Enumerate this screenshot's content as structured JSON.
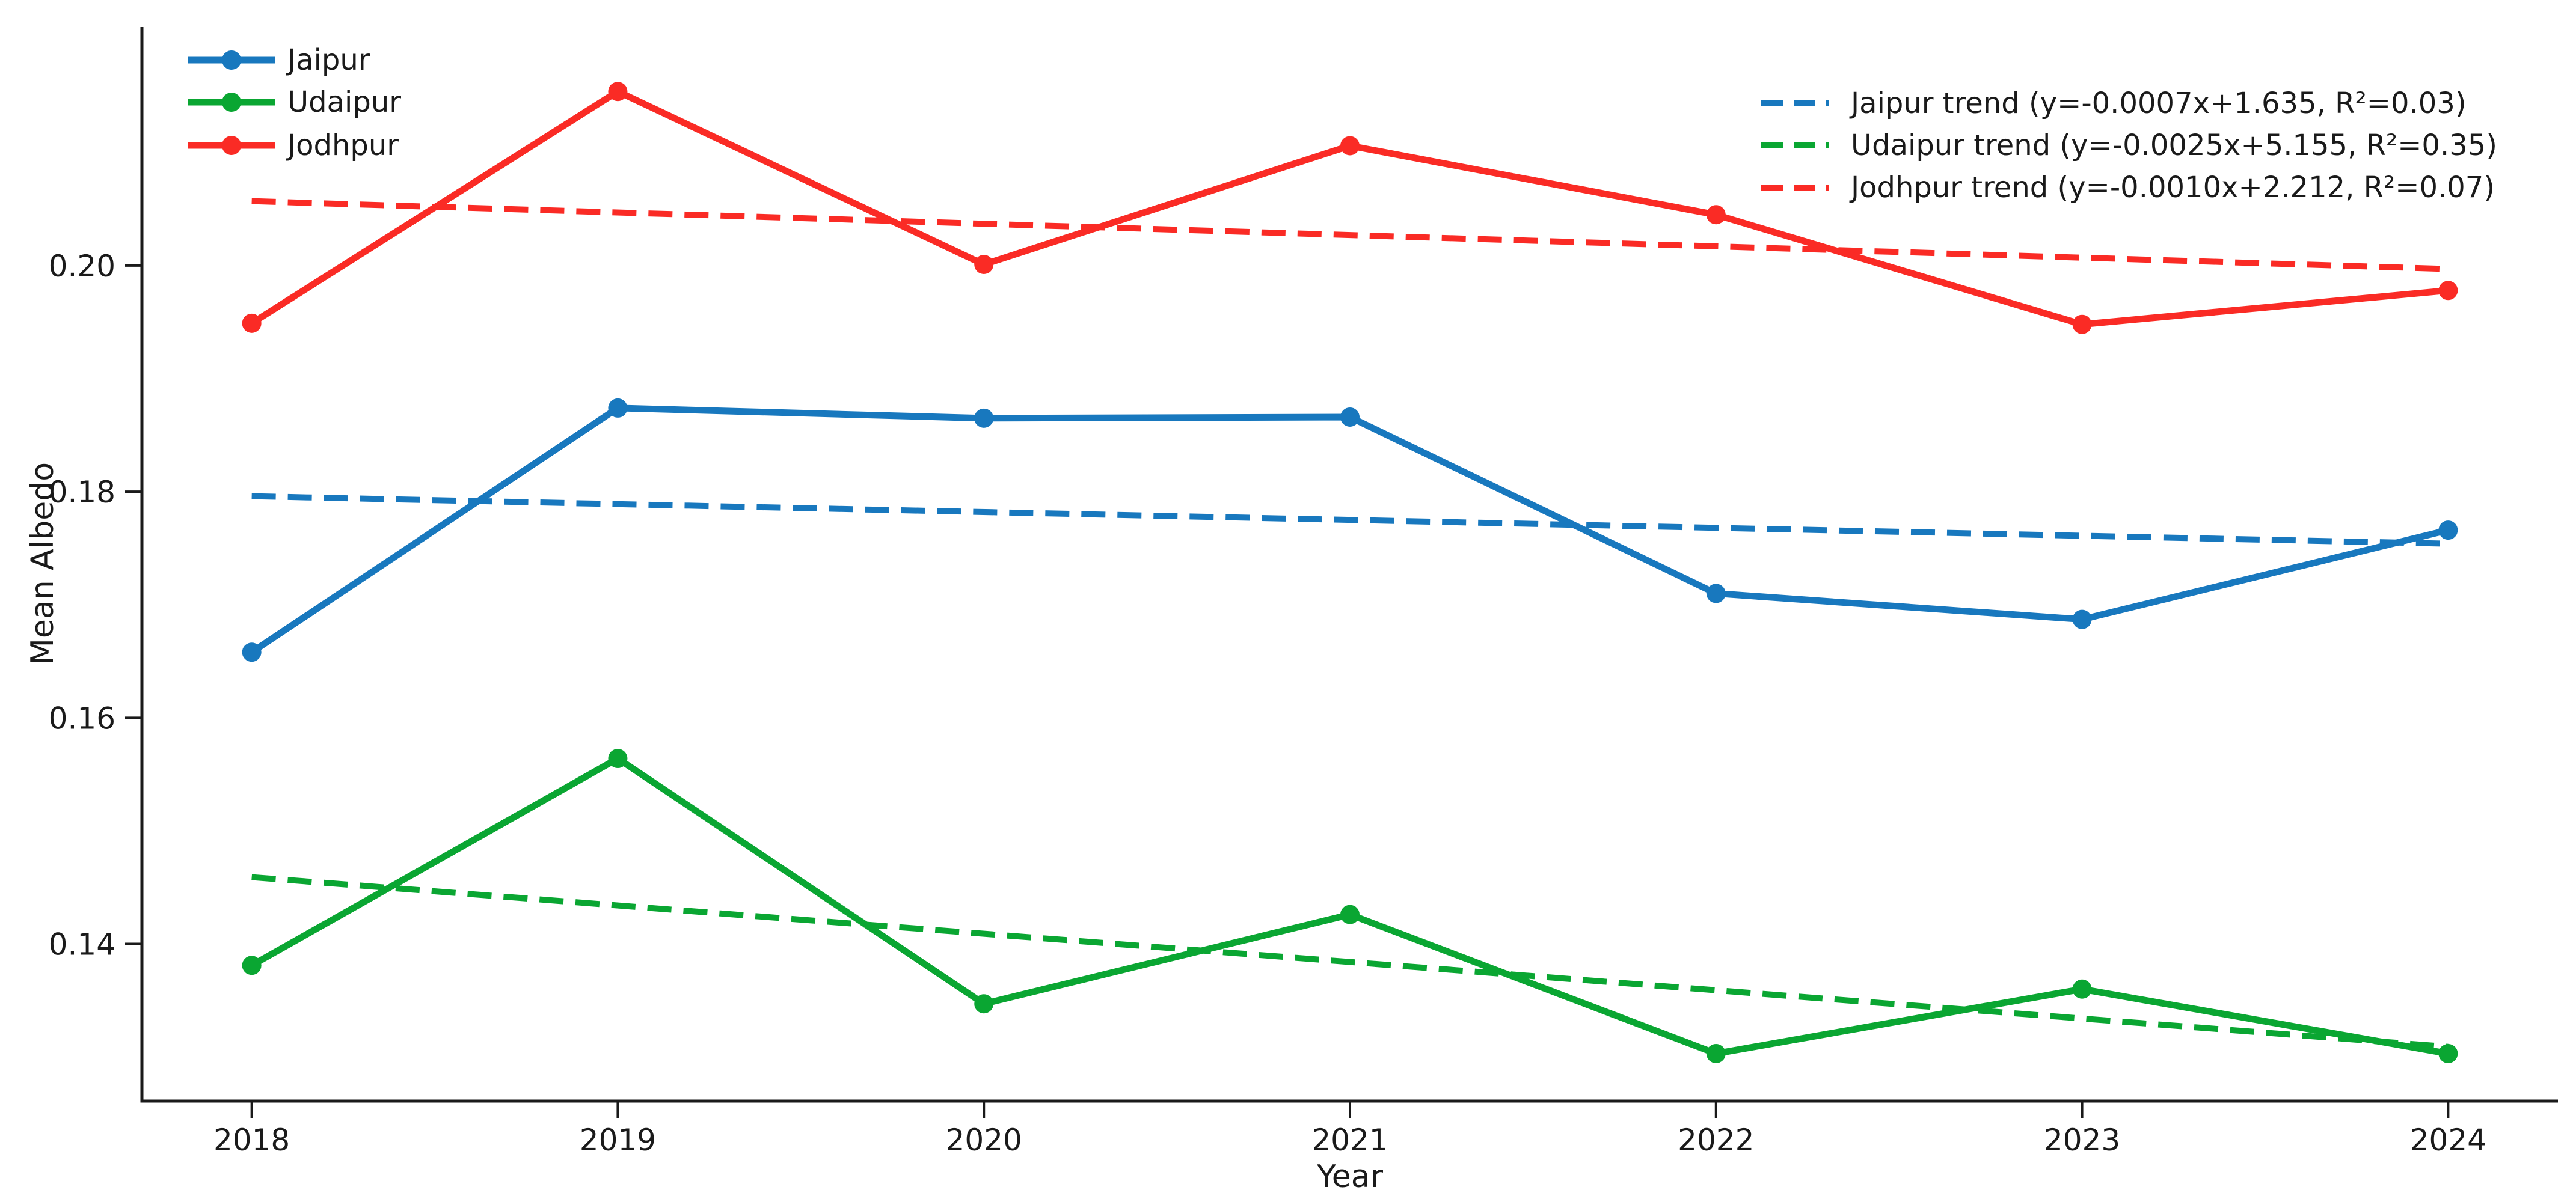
{
  "figure": {
    "background": "#ffffff",
    "axis_color": "#1a1a1a"
  },
  "chart_data": {
    "type": "line",
    "title": "",
    "xlabel": "Year",
    "ylabel": "Mean Albedo",
    "grid": false,
    "x": [
      2018,
      2019,
      2020,
      2021,
      2022,
      2023,
      2024
    ],
    "xtick_labels": [
      "2018",
      "2019",
      "2020",
      "2021",
      "2022",
      "2023",
      "2024"
    ],
    "yticks": [
      0.14,
      0.16,
      0.18,
      0.2
    ],
    "ytick_labels": [
      "0.14",
      "0.16",
      "0.18",
      "0.20"
    ],
    "xlim": [
      2017.7,
      2024.3
    ],
    "ylim": [
      0.1261,
      0.2211
    ],
    "legend_series_position": "top-left",
    "legend_trends_position": "top-right",
    "series": [
      {
        "name": "Jaipur",
        "color": "#1878be",
        "line_style": "solid",
        "marker": "circle",
        "values": [
          0.1658,
          0.1874,
          0.1865,
          0.1866,
          0.171,
          0.1687,
          0.1766
        ]
      },
      {
        "name": "Udaipur",
        "color": "#0aa632",
        "line_style": "solid",
        "marker": "circle",
        "values": [
          0.1381,
          0.1564,
          0.1347,
          0.1426,
          0.1303,
          0.136,
          0.1303
        ]
      },
      {
        "name": "Jodhpur",
        "color": "#fa2b25",
        "line_style": "solid",
        "marker": "circle",
        "values": [
          0.1949,
          0.2154,
          0.2001,
          0.2106,
          0.2045,
          0.1948,
          0.1978
        ]
      }
    ],
    "trendlines": [
      {
        "name": "Jaipur trend (y=-0.0007x+1.635, R²=0.03)",
        "color": "#1878be",
        "line_style": "dashed",
        "value_2018": 0.1796,
        "value_2024": 0.1754
      },
      {
        "name": "Udaipur trend (y=-0.0025x+5.155, R²=0.35)",
        "color": "#0aa632",
        "line_style": "dashed",
        "value_2018": 0.1459,
        "value_2024": 0.1309
      },
      {
        "name": "Jodhpur trend (y=-0.0010x+2.212, R²=0.07)",
        "color": "#fa2b25",
        "line_style": "dashed",
        "value_2018": 0.2057,
        "value_2024": 0.1997
      }
    ]
  }
}
